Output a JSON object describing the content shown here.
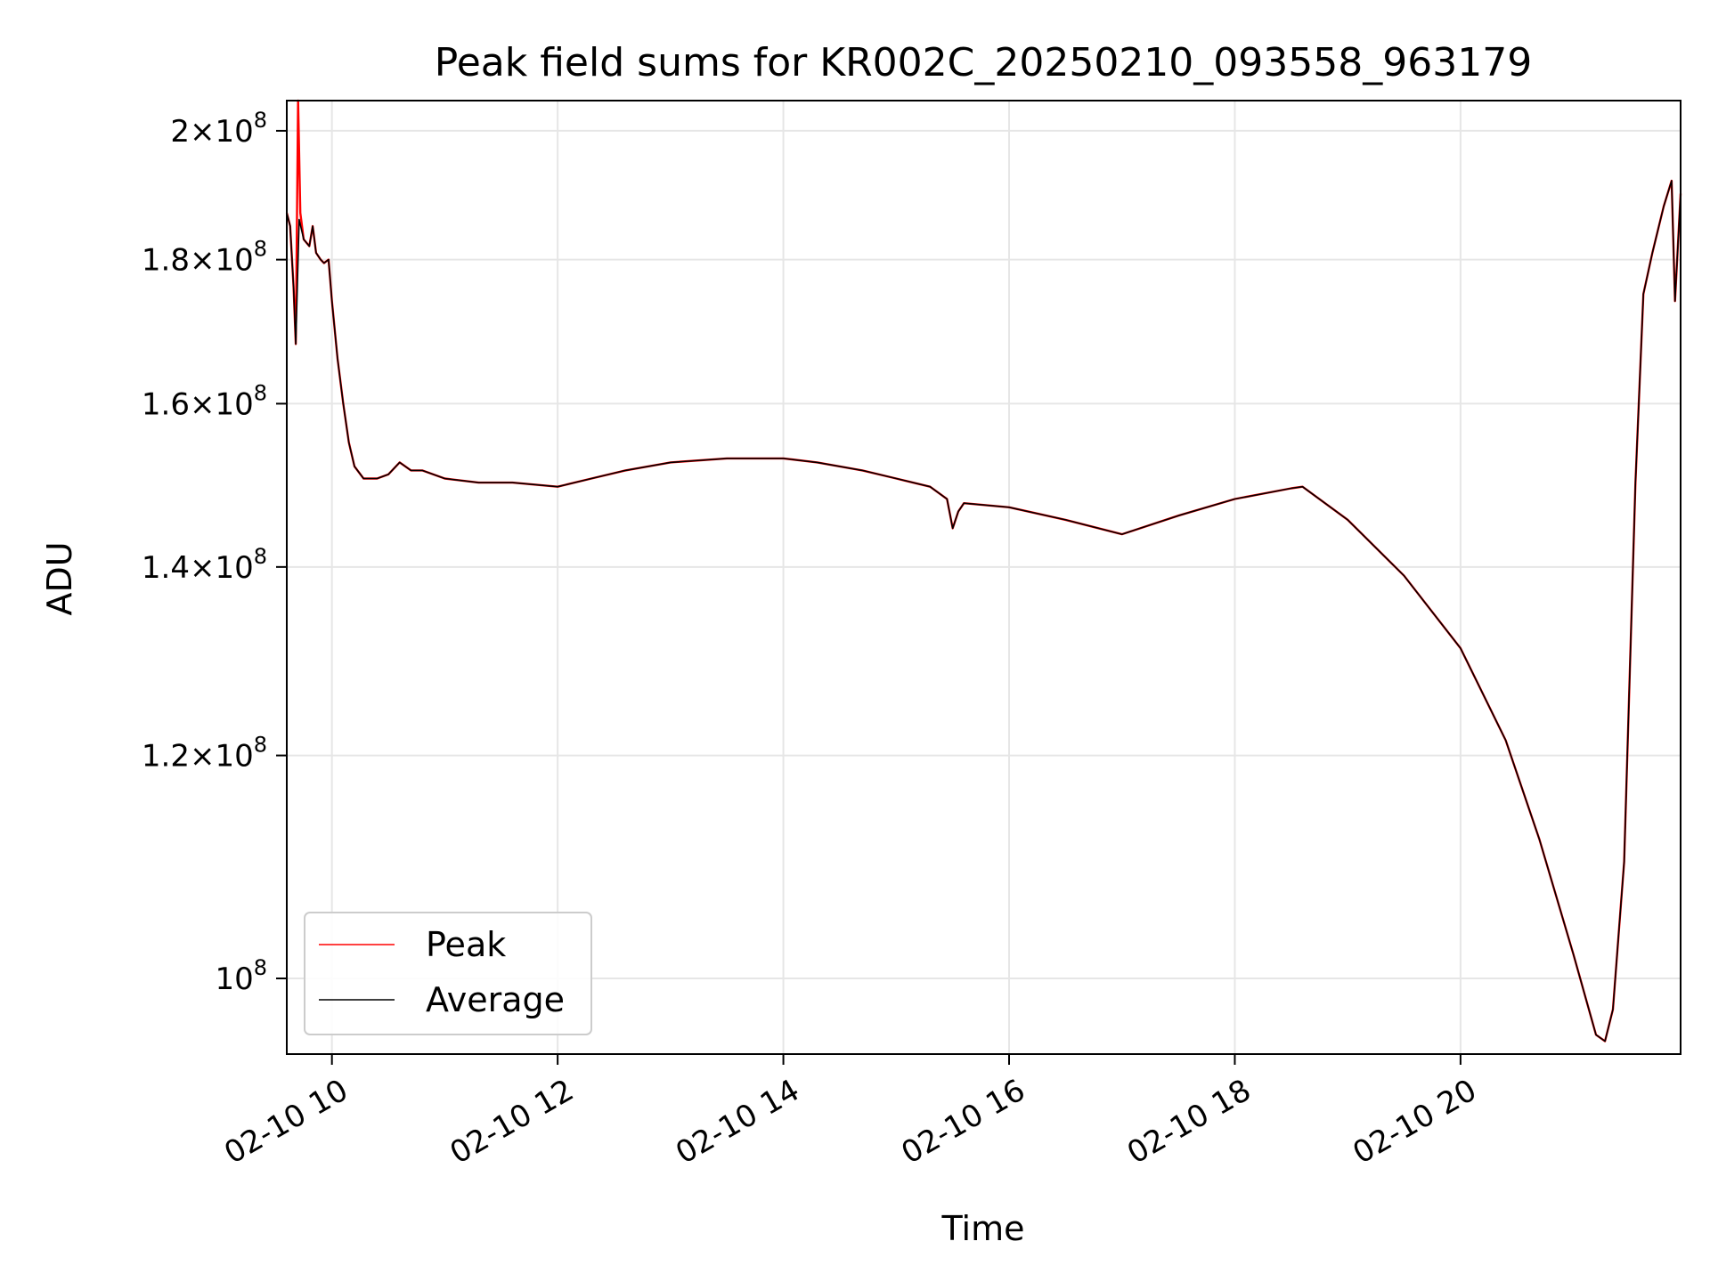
{
  "chart_data": {
    "type": "line",
    "title": "Peak field sums for KR002C_20250210_093558_963179",
    "xlabel": "Time",
    "ylabel": "ADU",
    "yscale": "log",
    "grid": true,
    "legend_position": "lower-left",
    "xlim": [
      9.6,
      21.95
    ],
    "ylim": [
      94000000,
      205000000
    ],
    "x_unit": "hours on 2025-02-10",
    "x_ticks": [
      {
        "value": 10,
        "label": "02-10 10"
      },
      {
        "value": 12,
        "label": "02-10 12"
      },
      {
        "value": 14,
        "label": "02-10 14"
      },
      {
        "value": 16,
        "label": "02-10 16"
      },
      {
        "value": 18,
        "label": "02-10 18"
      },
      {
        "value": 20,
        "label": "02-10 20"
      }
    ],
    "y_ticks": [
      {
        "value": 100000000,
        "mantissa": "",
        "exp": "8"
      },
      {
        "value": 120000000,
        "mantissa": "1.2",
        "exp": "8"
      },
      {
        "value": 140000000,
        "mantissa": "1.4",
        "exp": "8"
      },
      {
        "value": 160000000,
        "mantissa": "1.6",
        "exp": "8"
      },
      {
        "value": 180000000,
        "mantissa": "1.8",
        "exp": "8"
      },
      {
        "value": 200000000,
        "mantissa": "2",
        "exp": "8"
      }
    ],
    "series": [
      {
        "name": "Peak",
        "color": "#ff0000",
        "points": [
          [
            9.6,
            187000000
          ],
          [
            9.63,
            185000000
          ],
          [
            9.66,
            176000000
          ],
          [
            9.68,
            168000000
          ],
          [
            9.7,
            205000000
          ],
          [
            9.72,
            187000000
          ],
          [
            9.75,
            183000000
          ],
          [
            9.8,
            182000000
          ],
          [
            9.83,
            185000000
          ],
          [
            9.86,
            181000000
          ],
          [
            9.9,
            180000000
          ],
          [
            9.93,
            179500000
          ],
          [
            9.97,
            180000000
          ],
          [
            10.0,
            174000000
          ],
          [
            10.05,
            166000000
          ],
          [
            10.1,
            160000000
          ],
          [
            10.15,
            155000000
          ],
          [
            10.2,
            152000000
          ],
          [
            10.28,
            150500000
          ],
          [
            10.4,
            150500000
          ],
          [
            10.5,
            151000000
          ],
          [
            10.6,
            152500000
          ],
          [
            10.7,
            151500000
          ],
          [
            10.8,
            151500000
          ],
          [
            11.0,
            150500000
          ],
          [
            11.3,
            150000000
          ],
          [
            11.6,
            150000000
          ],
          [
            12.0,
            149500000
          ],
          [
            12.3,
            150500000
          ],
          [
            12.6,
            151500000
          ],
          [
            13.0,
            152500000
          ],
          [
            13.5,
            153000000
          ],
          [
            14.0,
            153000000
          ],
          [
            14.3,
            152500000
          ],
          [
            14.7,
            151500000
          ],
          [
            15.0,
            150500000
          ],
          [
            15.3,
            149500000
          ],
          [
            15.45,
            148000000
          ],
          [
            15.5,
            144500000
          ],
          [
            15.55,
            146500000
          ],
          [
            15.6,
            147500000
          ],
          [
            16.0,
            147000000
          ],
          [
            16.5,
            145500000
          ],
          [
            17.0,
            143800000
          ],
          [
            17.5,
            146000000
          ],
          [
            18.0,
            148000000
          ],
          [
            18.5,
            149300000
          ],
          [
            18.6,
            149500000
          ],
          [
            19.0,
            145500000
          ],
          [
            19.5,
            139000000
          ],
          [
            20.0,
            131000000
          ],
          [
            20.4,
            121500000
          ],
          [
            20.7,
            112000000
          ],
          [
            21.0,
            102000000
          ],
          [
            21.2,
            95500000
          ],
          [
            21.28,
            95000000
          ],
          [
            21.35,
            97500000
          ],
          [
            21.45,
            110000000
          ],
          [
            21.55,
            150000000
          ],
          [
            21.62,
            175000000
          ],
          [
            21.7,
            181000000
          ],
          [
            21.8,
            188000000
          ],
          [
            21.87,
            192000000
          ],
          [
            21.9,
            174000000
          ],
          [
            21.95,
            190000000
          ]
        ]
      },
      {
        "name": "Average",
        "color": "#000000",
        "points": [
          [
            9.6,
            187000000
          ],
          [
            9.63,
            185000000
          ],
          [
            9.66,
            176000000
          ],
          [
            9.68,
            168000000
          ],
          [
            9.71,
            186000000
          ],
          [
            9.75,
            183000000
          ],
          [
            9.8,
            182000000
          ],
          [
            9.83,
            185000000
          ],
          [
            9.86,
            181000000
          ],
          [
            9.9,
            180000000
          ],
          [
            9.93,
            179500000
          ],
          [
            9.97,
            180000000
          ],
          [
            10.0,
            174000000
          ],
          [
            10.05,
            166000000
          ],
          [
            10.1,
            160000000
          ],
          [
            10.15,
            155000000
          ],
          [
            10.2,
            152000000
          ],
          [
            10.28,
            150500000
          ],
          [
            10.4,
            150500000
          ],
          [
            10.5,
            151000000
          ],
          [
            10.6,
            152500000
          ],
          [
            10.7,
            151500000
          ],
          [
            10.8,
            151500000
          ],
          [
            11.0,
            150500000
          ],
          [
            11.3,
            150000000
          ],
          [
            11.6,
            150000000
          ],
          [
            12.0,
            149500000
          ],
          [
            12.3,
            150500000
          ],
          [
            12.6,
            151500000
          ],
          [
            13.0,
            152500000
          ],
          [
            13.5,
            153000000
          ],
          [
            14.0,
            153000000
          ],
          [
            14.3,
            152500000
          ],
          [
            14.7,
            151500000
          ],
          [
            15.0,
            150500000
          ],
          [
            15.3,
            149500000
          ],
          [
            15.45,
            148000000
          ],
          [
            15.5,
            144500000
          ],
          [
            15.55,
            146500000
          ],
          [
            15.6,
            147500000
          ],
          [
            16.0,
            147000000
          ],
          [
            16.5,
            145500000
          ],
          [
            17.0,
            143800000
          ],
          [
            17.5,
            146000000
          ],
          [
            18.0,
            148000000
          ],
          [
            18.5,
            149300000
          ],
          [
            18.6,
            149500000
          ],
          [
            19.0,
            145500000
          ],
          [
            19.5,
            139000000
          ],
          [
            20.0,
            131000000
          ],
          [
            20.4,
            121500000
          ],
          [
            20.7,
            112000000
          ],
          [
            21.0,
            102000000
          ],
          [
            21.2,
            95500000
          ],
          [
            21.28,
            95000000
          ],
          [
            21.35,
            97500000
          ],
          [
            21.45,
            110000000
          ],
          [
            21.55,
            150000000
          ],
          [
            21.62,
            175000000
          ],
          [
            21.7,
            181000000
          ],
          [
            21.8,
            188000000
          ],
          [
            21.87,
            192000000
          ],
          [
            21.9,
            174000000
          ],
          [
            21.95,
            190000000
          ]
        ]
      }
    ]
  }
}
